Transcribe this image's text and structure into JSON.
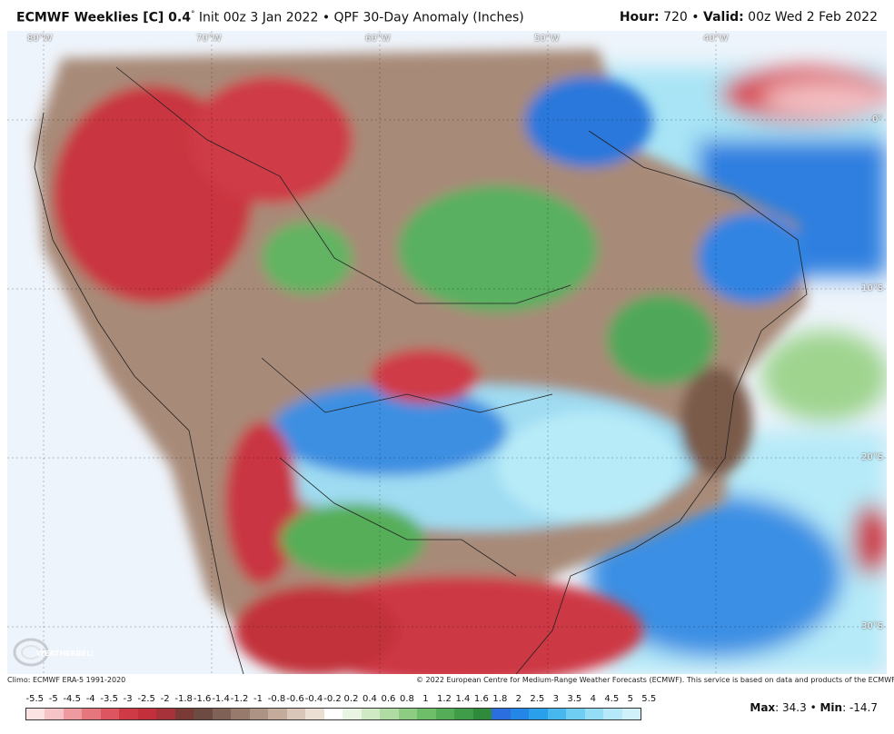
{
  "header": {
    "model": "ECMWF Weeklies [C] 0.4",
    "degree": "°",
    "rest": " Init 00z 3 Jan 2022 • QPF 30-Day Anomaly (Inches)",
    "hour_label": "Hour:",
    "hour_value": " 720 • ",
    "valid_label": "Valid:",
    "valid_value": " 00z Wed 2 Feb 2022"
  },
  "map": {
    "lon_labels": [
      "80°W",
      "70°W",
      "60°W",
      "50°W",
      "40°W"
    ],
    "lat_labels": [
      "0°",
      "10°S",
      "20°S",
      "30°S"
    ]
  },
  "footer": {
    "climo": "Climo: ECMWF ERA-5 1991-2020",
    "copyright": "© 2022 European Centre for Medium-Range Weather Forecasts (ECMWF). This service is based on data and products of the ECMWF.",
    "logo_text": "WEATHERBELL"
  },
  "colorbar": {
    "labels": [
      "-5.5",
      "-5",
      "-4.5",
      "-4",
      "-3.5",
      "-3",
      "-2.5",
      "-2",
      "-1.8",
      "-1.6",
      "-1.4",
      "-1.2",
      "-1",
      "-0.8",
      "-0.6",
      "-0.4",
      "-0.2",
      "0.2",
      "0.4",
      "0.6",
      "0.8",
      "1",
      "1.2",
      "1.4",
      "1.6",
      "1.8",
      "2",
      "2.5",
      "3",
      "3.5",
      "4",
      "4.5",
      "5",
      "5.5"
    ],
    "colors": [
      "#fbe3e3",
      "#f6c3c6",
      "#ee9aa0",
      "#e5767d",
      "#dc5560",
      "#cf3a47",
      "#c2303b",
      "#a8323a",
      "#7a3b37",
      "#6d4a42",
      "#806156",
      "#977a6c",
      "#ad9384",
      "#c4ac9c",
      "#d9c6b8",
      "#ebdfd4",
      "#ffffff",
      "#e9f4e3",
      "#cfe9c4",
      "#b0dba3",
      "#8fcc83",
      "#6ebd68",
      "#55ad57",
      "#3f9d49",
      "#2f8a3b",
      "#2a6ee0",
      "#2486e6",
      "#2aa0ea",
      "#47b8ee",
      "#6fcdf2",
      "#95dcf5",
      "#b5e8f8",
      "#d0f1fa"
    ]
  },
  "stats": {
    "max_label": "Max",
    "max_value": "34.3",
    "min_label": "Min",
    "min_value": "-14.7"
  }
}
